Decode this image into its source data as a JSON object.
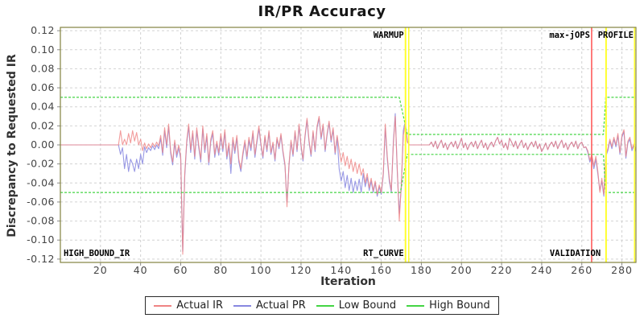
{
  "chart_data": {
    "type": "line",
    "title": "IR/PR Accuracy",
    "xlabel": "Iteration",
    "ylabel": "Discrepancy to Requested IR",
    "xlim": [
      0,
      287
    ],
    "ylim": [
      -0.1235,
      0.1235
    ],
    "xticks": [
      20,
      40,
      60,
      80,
      100,
      120,
      140,
      160,
      180,
      200,
      220,
      240,
      260,
      280
    ],
    "yticks": [
      0.12,
      0.1,
      0.08,
      0.06,
      0.04,
      0.02,
      0.0,
      -0.02,
      -0.04,
      -0.06,
      -0.08,
      -0.1,
      -0.12
    ],
    "grid": true,
    "legend_position": "bottom",
    "series": [
      {
        "name": "Actual IR",
        "color": "#ef8383",
        "width": 1.1,
        "opacity": 0.8,
        "y": [
          0,
          0,
          0,
          0,
          0,
          0,
          0,
          0,
          0,
          0,
          0,
          0,
          0,
          0,
          0,
          0,
          0,
          0,
          0,
          0,
          0,
          0,
          0,
          0,
          0,
          0,
          0,
          0,
          0,
          0,
          0.015,
          0,
          0.006,
          0,
          0.012,
          0.002,
          0.015,
          0.004,
          0.013,
          0,
          0.006,
          -0.006,
          0.002,
          -0.004,
          0.001,
          -0.003,
          0.002,
          -0.002,
          0.003,
          -0.001,
          0.01,
          -0.008,
          0.018,
          0,
          0.022,
          -0.006,
          -0.018,
          0.005,
          -0.01,
          0,
          -0.012,
          -0.115,
          -0.03,
          0.005,
          0.022,
          -0.005,
          0.015,
          -0.012,
          0.018,
          0,
          -0.015,
          0.02,
          -0.005,
          0.012,
          -0.018,
          0.006,
          0.015,
          -0.01,
          0.004,
          -0.008,
          0.012,
          -0.004,
          0.016,
          -0.012,
          0.002,
          -0.02,
          0.008,
          -0.006,
          0.01,
          -0.015,
          -0.025,
          -0.008,
          0.005,
          -0.012,
          0.008,
          -0.003,
          0.015,
          -0.01,
          0.005,
          0.02,
          0.002,
          -0.012,
          0.01,
          -0.005,
          0.015,
          -0.008,
          0.003,
          -0.015,
          0.008,
          -0.002,
          0.012,
          -0.006,
          -0.02,
          -0.065,
          -0.02,
          0.005,
          -0.01,
          0.015,
          -0.005,
          0.022,
          0,
          -0.015,
          0.01,
          0.028,
          0.005,
          -0.01,
          0.015,
          -0.005,
          0.02,
          0.03,
          0.008,
          0.022,
          -0.005,
          0.012,
          0.025,
          0.005,
          0.018,
          -0.008,
          0.01,
          -0.005,
          -0.018,
          -0.008,
          -0.022,
          -0.012,
          -0.025,
          -0.015,
          -0.028,
          -0.018,
          -0.03,
          -0.02,
          -0.032,
          -0.025,
          -0.04,
          -0.03,
          -0.045,
          -0.035,
          -0.048,
          -0.038,
          -0.052,
          -0.042,
          -0.05,
          -0.03,
          0.022,
          -0.012,
          -0.035,
          -0.048,
          0,
          0.03,
          -0.025,
          -0.08,
          -0.042,
          0.01,
          0.022,
          0.003,
          0,
          0,
          0,
          0,
          0,
          0,
          0,
          0,
          0,
          0,
          0,
          0.003,
          -0.002,
          0.004,
          -0.004,
          0.001,
          0.005,
          -0.003,
          0.002,
          -0.005,
          0,
          0.003,
          -0.002,
          0.004,
          -0.004,
          0.001,
          0.007,
          -0.003,
          0.002,
          -0.005,
          0,
          0.003,
          -0.002,
          0.004,
          -0.004,
          0.001,
          0.005,
          -0.003,
          0.002,
          -0.005,
          0,
          0.003,
          -0.002,
          0.004,
          0.008,
          0.001,
          0.005,
          -0.003,
          0.002,
          -0.005,
          0.007,
          0.003,
          -0.002,
          0.004,
          -0.004,
          0.001,
          0.005,
          -0.003,
          0.002,
          -0.005,
          0,
          0.003,
          -0.002,
          0.004,
          -0.004,
          0.001,
          -0.007,
          -0.003,
          0.002,
          -0.005,
          0,
          0.003,
          -0.002,
          0.004,
          -0.004,
          0.001,
          0.005,
          -0.003,
          0.002,
          -0.005,
          0,
          0.003,
          -0.002,
          0.004,
          -0.004,
          0.001,
          0.003,
          -0.003,
          -0.002,
          -0.006,
          -0.016,
          -0.01,
          -0.022,
          -0.012,
          -0.028,
          -0.05,
          -0.035,
          -0.052,
          -0.01,
          -0.004,
          0.006,
          -0.002,
          0.008,
          0,
          0.012,
          -0.008,
          0.01,
          0.016,
          -0.012,
          0.004,
          0.008,
          -0.004,
          0.001,
          -0.005
        ]
      },
      {
        "name": "Actual PR",
        "color": "#8787e0",
        "width": 1.1,
        "opacity": 0.85,
        "y": [
          0,
          0,
          0,
          0,
          0,
          0,
          0,
          0,
          0,
          0,
          0,
          0,
          0,
          0,
          0,
          0,
          0,
          0,
          0,
          0,
          0,
          0,
          0,
          0,
          0,
          0,
          0,
          0,
          0,
          0,
          -0.01,
          -0.003,
          -0.025,
          -0.01,
          -0.028,
          -0.015,
          -0.02,
          -0.028,
          -0.015,
          -0.025,
          -0.01,
          -0.02,
          -0.002,
          -0.008,
          -0.003,
          -0.006,
          -0.001,
          -0.005,
          0,
          -0.004,
          0.007,
          -0.011,
          0.015,
          -0.003,
          0.019,
          -0.009,
          -0.021,
          0.002,
          -0.013,
          -0.003,
          -0.015,
          -0.112,
          -0.033,
          0.002,
          0.019,
          -0.008,
          0.012,
          -0.015,
          0.015,
          -0.003,
          -0.018,
          0.017,
          -0.008,
          0.009,
          -0.021,
          0.003,
          0.012,
          -0.013,
          0.001,
          -0.011,
          0.009,
          -0.007,
          0.013,
          -0.015,
          -0.001,
          -0.03,
          0.005,
          -0.009,
          0.007,
          -0.018,
          -0.028,
          -0.011,
          0.002,
          -0.015,
          0.005,
          -0.006,
          0.012,
          -0.013,
          0.002,
          0.017,
          0,
          -0.014,
          0.008,
          -0.007,
          0.013,
          -0.01,
          0.001,
          -0.017,
          0.006,
          -0.004,
          0.01,
          -0.008,
          -0.022,
          -0.06,
          -0.022,
          0.003,
          -0.012,
          0.013,
          -0.007,
          0.02,
          -0.002,
          -0.017,
          0.008,
          0.026,
          0.003,
          -0.012,
          0.013,
          -0.007,
          0.018,
          0.028,
          0.006,
          0.02,
          -0.007,
          0.01,
          0.023,
          0.003,
          0.016,
          -0.01,
          0.008,
          -0.025,
          -0.038,
          -0.028,
          -0.045,
          -0.032,
          -0.048,
          -0.035,
          -0.05,
          -0.038,
          -0.048,
          -0.036,
          -0.05,
          -0.03,
          -0.044,
          -0.034,
          -0.048,
          -0.038,
          -0.05,
          -0.04,
          -0.054,
          -0.044,
          -0.052,
          -0.032,
          0.018,
          -0.015,
          -0.038,
          -0.05,
          0.003,
          0.033,
          -0.028,
          -0.072,
          -0.045,
          0.015,
          0.025,
          0.004,
          0,
          0,
          0,
          0,
          0,
          0,
          0,
          0,
          0,
          0,
          0,
          0.003,
          -0.002,
          0.004,
          -0.004,
          0.001,
          0.005,
          -0.003,
          0.002,
          -0.005,
          0,
          0.003,
          -0.002,
          0.004,
          -0.004,
          0.001,
          0.007,
          -0.003,
          0.002,
          -0.005,
          0,
          0.003,
          -0.002,
          0.004,
          -0.004,
          0.001,
          0.005,
          -0.003,
          0.002,
          -0.005,
          0,
          0.003,
          -0.002,
          0.004,
          0.008,
          0.001,
          0.005,
          -0.003,
          0.002,
          -0.005,
          0.007,
          0.003,
          -0.002,
          0.004,
          -0.004,
          0.001,
          0.005,
          -0.003,
          0.002,
          -0.005,
          0,
          0.003,
          -0.002,
          0.004,
          -0.004,
          0.001,
          -0.007,
          -0.003,
          0.002,
          -0.005,
          0,
          0.003,
          -0.002,
          0.004,
          -0.004,
          0.001,
          0.005,
          -0.003,
          0.002,
          -0.005,
          0,
          0.003,
          -0.002,
          0.004,
          -0.004,
          0.001,
          0.003,
          -0.003,
          -0.002,
          -0.008,
          -0.018,
          -0.012,
          -0.025,
          -0.015,
          -0.031,
          -0.048,
          -0.038,
          -0.054,
          -0.012,
          -0.006,
          0.004,
          -0.004,
          0.006,
          -0.002,
          0.01,
          -0.01,
          0.008,
          0.014,
          -0.014,
          0.002,
          0.006,
          -0.006,
          -0.001,
          -0.007
        ]
      },
      {
        "name": "Low Bound",
        "color": "#44d544",
        "width": 1.2,
        "opacity": 1,
        "dash": "3,2",
        "points": [
          [
            0,
            -0.05
          ],
          [
            169.5,
            -0.05
          ],
          [
            173,
            -0.01
          ],
          [
            270.8,
            -0.01
          ],
          [
            271.9,
            -0.05
          ],
          [
            287,
            -0.05
          ]
        ]
      },
      {
        "name": "High Bound",
        "color": "#44d544",
        "width": 1.2,
        "opacity": 1,
        "dash": "3,2",
        "points": [
          [
            0,
            0.05
          ],
          [
            169,
            0.05
          ],
          [
            173,
            0.011
          ],
          [
            270.8,
            0.011
          ],
          [
            271.9,
            0.05
          ],
          [
            287,
            0.05
          ]
        ]
      }
    ],
    "marker_lines": [
      {
        "name": "warmup-line",
        "x": 172.1,
        "color": "#ffff2e",
        "width": 2
      },
      {
        "name": "rt-curve-line",
        "x": 173.7,
        "color": "#ffff2e",
        "width": 1.6
      },
      {
        "name": "max-jops-line",
        "x": 264.9,
        "color": "#ff5c5c",
        "width": 1.6
      },
      {
        "name": "profile-line",
        "x": 272.1,
        "color": "#ffff2e",
        "width": 2
      },
      {
        "name": "end-line",
        "x": 286.3,
        "color": "#ffff2e",
        "width": 1.6
      }
    ],
    "marker_labels": [
      {
        "text": "WARMUP",
        "x": 172.1,
        "pos": "top",
        "anchor": "end"
      },
      {
        "text": "RT_CURVE",
        "x": 172.1,
        "pos": "bottom",
        "anchor": "end"
      },
      {
        "text": "max-jOPS",
        "x": 264.9,
        "pos": "top",
        "anchor": "end"
      },
      {
        "text": "VALIDATION",
        "x": 270.2,
        "pos": "bottom",
        "anchor": "end"
      },
      {
        "text": "PROFILE",
        "x": 286.6,
        "pos": "top",
        "anchor": "end"
      },
      {
        "text": "HIGH_BOUND_IR",
        "x": 0.8,
        "pos": "bottom",
        "anchor": "start"
      }
    ]
  },
  "legend": {
    "items": [
      {
        "label": "Actual IR",
        "color": "#ef8383"
      },
      {
        "label": "Actual PR",
        "color": "#8787e0"
      },
      {
        "label": "Low Bound",
        "color": "#44d544"
      },
      {
        "label": "High Bound",
        "color": "#44d544"
      }
    ]
  },
  "colors": {
    "grid": "#d2d2d2",
    "frame": "#83833f",
    "tick_text": "#454545",
    "annotation": "#000000",
    "background": "#ffffff"
  }
}
